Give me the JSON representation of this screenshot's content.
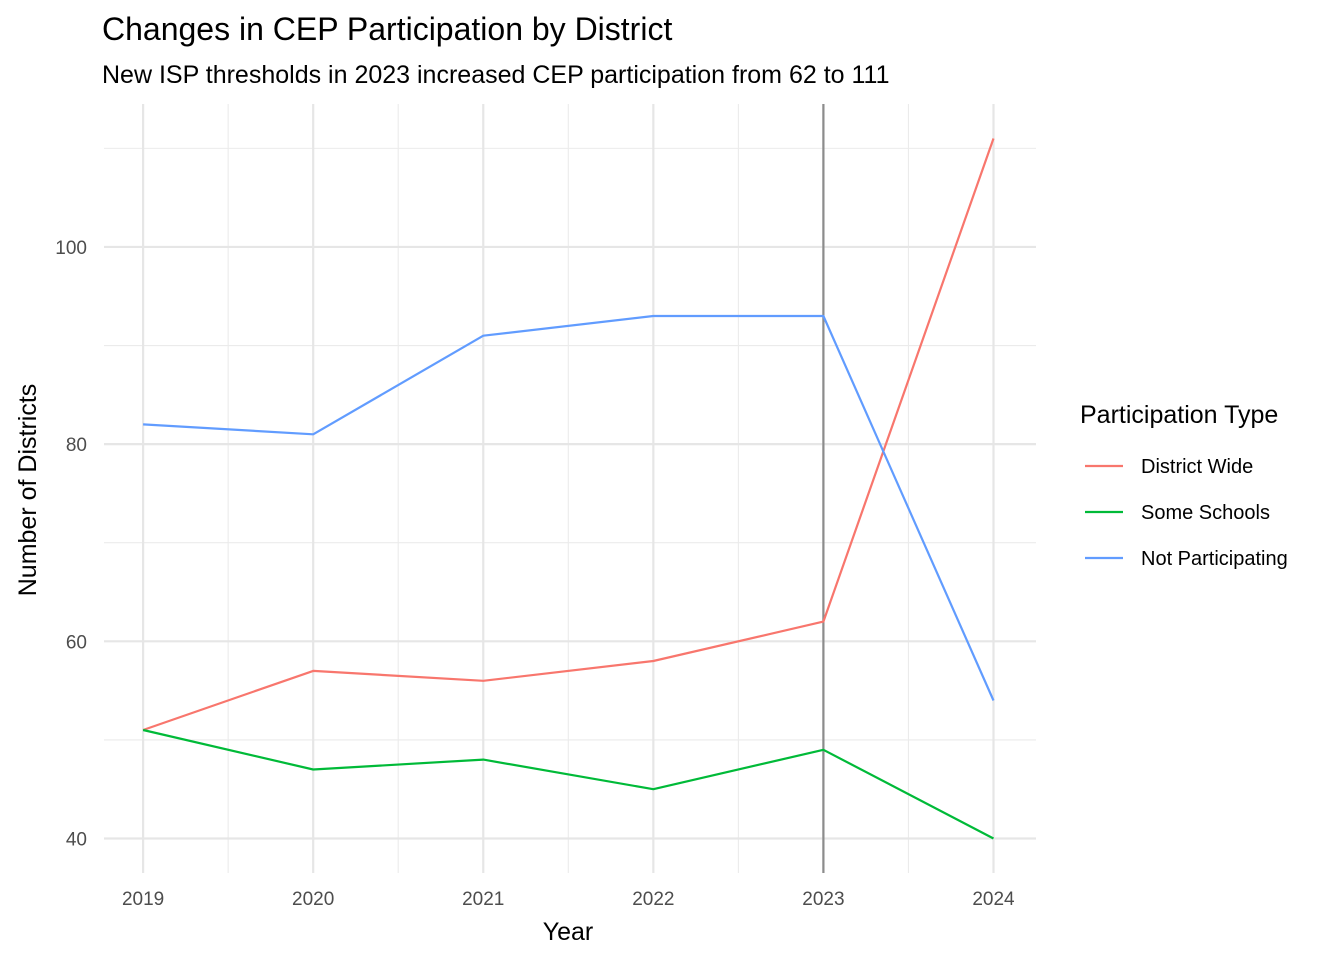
{
  "chart_data": {
    "type": "line",
    "title": "Changes in CEP Participation by District",
    "subtitle": "New ISP thresholds in 2023 increased CEP participation from 62 to 111",
    "xlabel": "Year",
    "ylabel": "Number of Districts",
    "x": [
      2019,
      2020,
      2021,
      2022,
      2023,
      2024
    ],
    "xlim": [
      2018.77,
      2024.25
    ],
    "ylim": [
      36.5,
      114.5
    ],
    "yticks": [
      40,
      60,
      80,
      100
    ],
    "grid": true,
    "reference_line": {
      "x": 2023,
      "color": "#8c8c8c"
    },
    "legend": {
      "title": "Participation Type",
      "position": "right"
    },
    "series": [
      {
        "name": "District Wide",
        "color": "#F8766D",
        "values": [
          51,
          57,
          56,
          58,
          62,
          111
        ]
      },
      {
        "name": "Some Schools",
        "color": "#00BA38",
        "values": [
          51,
          47,
          48,
          45,
          49,
          40
        ]
      },
      {
        "name": "Not Participating",
        "color": "#619CFF",
        "values": [
          82,
          81,
          91,
          93,
          93,
          54
        ]
      }
    ]
  }
}
